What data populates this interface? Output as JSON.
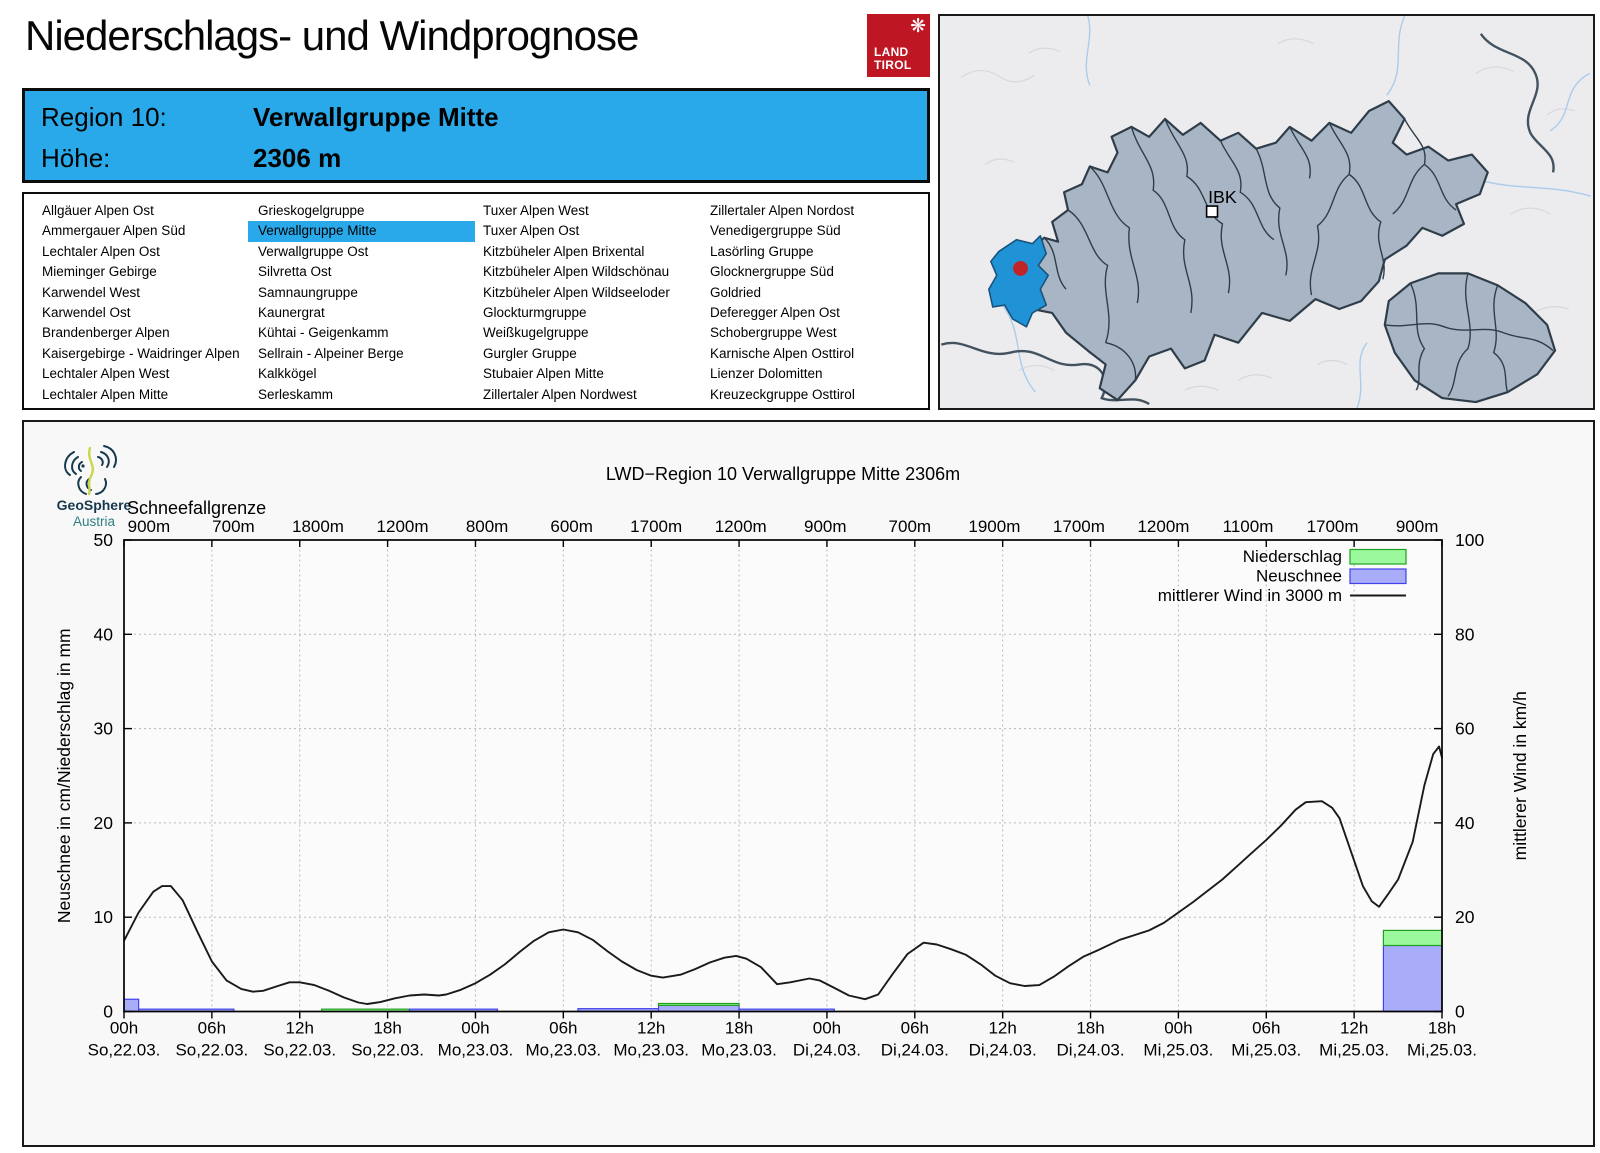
{
  "page": {
    "title": "Niederschlags- und Windprognose"
  },
  "logo_tirol": {
    "line1": "LAND",
    "line2": "TIROL"
  },
  "geosphere": {
    "line1": "GeoSphere",
    "line2": "Austria"
  },
  "region_header": {
    "region_label": "Region 10:",
    "region_value": "Verwallgruppe Mitte",
    "altitude_label": "Höhe:",
    "altitude_value": "2306 m"
  },
  "map": {
    "city_label": "IBK"
  },
  "region_list": {
    "selected": "Verwallgruppe Mitte",
    "columns": [
      [
        "Allgäuer Alpen Ost",
        "Ammergauer Alpen Süd",
        "Lechtaler Alpen Ost",
        "Mieminger Gebirge",
        "Karwendel West",
        "Karwendel Ost",
        "Brandenberger Alpen",
        "Kaisergebirge - Waidringer Alpen",
        "Lechtaler Alpen West",
        "Lechtaler Alpen Mitte"
      ],
      [
        "Grieskogelgruppe",
        "Verwallgruppe Mitte",
        "Verwallgruppe Ost",
        "Silvretta Ost",
        "Samnaungruppe",
        "Kaunergrat",
        "Kühtai - Geigenkamm",
        "Sellrain - Alpeiner Berge",
        "Kalkkögel",
        "Serleskamm"
      ],
      [
        "Tuxer Alpen West",
        "Tuxer Alpen Ost",
        "Kitzbüheler Alpen Brixental",
        "Kitzbüheler Alpen Wildschönau",
        "Kitzbüheler Alpen Wildseeloder",
        "Glockturmgruppe",
        "Weißkugelgruppe",
        "Gurgler Gruppe",
        "Stubaier Alpen Mitte",
        "Zillertaler Alpen Nordwest"
      ],
      [
        "Zillertaler Alpen Nordost",
        "Venedigergruppe Süd",
        "Lasörling Gruppe",
        "Glocknergruppe Süd",
        "Goldried",
        "Deferegger Alpen Ost",
        "Schobergruppe West",
        "Karnische Alpen Osttirol",
        "Lienzer Dolomitten",
        "Kreuzeckgruppe Osttirol"
      ]
    ]
  },
  "colors": {
    "selection_blue": "#29A9E9",
    "map_highlight_blue": "#2093D6",
    "marker_red": "#C12426",
    "logo_red": "#BE1622",
    "bar_niederschlag_fill": "#9CF89C",
    "bar_niederschlag_stroke": "#1FA01F",
    "bar_neuschnee_fill": "#A9ADF9",
    "bar_neuschnee_stroke": "#4242E8",
    "wind_line": "#1A1A1A"
  },
  "chart_data": {
    "type": "bar+line",
    "title": "LWD−Region 10 Verwallgruppe Mitte 2306m",
    "snowline_label": "Schneefallgrenze",
    "snowline_values": [
      "900m",
      "700m",
      "1800m",
      "1200m",
      "800m",
      "600m",
      "1700m",
      "1200m",
      "900m",
      "700m",
      "1900m",
      "1700m",
      "1200m",
      "1100m",
      "1700m",
      "900m"
    ],
    "ylabel_left": "Neuschnee in cm/Niederschlag in mm",
    "ylabel_right": "mittlerer Wind in km/h",
    "ylim_left": [
      0,
      50
    ],
    "ylim_right": [
      0,
      100
    ],
    "yticks_left": [
      0,
      10,
      20,
      30,
      40,
      50
    ],
    "yticks_right": [
      0,
      20,
      40,
      60,
      80,
      100
    ],
    "x_range_hours": [
      0,
      90
    ],
    "x_tick_step_hours": 6,
    "x_ticks": [
      {
        "time": "00h",
        "date": "So,22.03."
      },
      {
        "time": "06h",
        "date": "So,22.03."
      },
      {
        "time": "12h",
        "date": "So,22.03."
      },
      {
        "time": "18h",
        "date": "So,22.03."
      },
      {
        "time": "00h",
        "date": "Mo,23.03."
      },
      {
        "time": "06h",
        "date": "Mo,23.03."
      },
      {
        "time": "12h",
        "date": "Mo,23.03."
      },
      {
        "time": "18h",
        "date": "Mo,23.03."
      },
      {
        "time": "00h",
        "date": "Di,24.03."
      },
      {
        "time": "06h",
        "date": "Di,24.03."
      },
      {
        "time": "12h",
        "date": "Di,24.03."
      },
      {
        "time": "18h",
        "date": "Di,24.03."
      },
      {
        "time": "00h",
        "date": "Mi,25.03."
      },
      {
        "time": "06h",
        "date": "Mi,25.03."
      },
      {
        "time": "12h",
        "date": "Mi,25.03."
      },
      {
        "time": "18h",
        "date": "Mi,25.03."
      }
    ],
    "legend": [
      {
        "label": "Niederschlag",
        "type": "box",
        "fill": "#9CF89C",
        "stroke": "#1FA01F"
      },
      {
        "label": "Neuschnee",
        "type": "box",
        "fill": "#A9ADF9",
        "stroke": "#4242E8"
      },
      {
        "label": "mittlerer Wind in 3000 m",
        "type": "line",
        "stroke": "#1A1A1A"
      }
    ],
    "bars_note": "neuschnee_cm drawn from 0 (left axis), niederschlag_mm stacked on top of it",
    "bars": [
      {
        "from_h": 0,
        "to_h": 1,
        "neuschnee_cm": 1.3,
        "niederschlag_mm": 0
      },
      {
        "from_h": 1,
        "to_h": 7.5,
        "neuschnee_cm": 0.25,
        "niederschlag_mm": 0
      },
      {
        "from_h": 13.5,
        "to_h": 19.5,
        "neuschnee_cm": 0,
        "niederschlag_mm": 0.25
      },
      {
        "from_h": 19.5,
        "to_h": 25.5,
        "neuschnee_cm": 0.25,
        "niederschlag_mm": 0
      },
      {
        "from_h": 31,
        "to_h": 36.5,
        "neuschnee_cm": 0.3,
        "niederschlag_mm": 0
      },
      {
        "from_h": 36.5,
        "to_h": 42,
        "neuschnee_cm": 0.65,
        "niederschlag_mm": 0.2
      },
      {
        "from_h": 42,
        "to_h": 48.5,
        "neuschnee_cm": 0.25,
        "niederschlag_mm": 0
      },
      {
        "from_h": 86,
        "to_h": 90,
        "neuschnee_cm": 7.0,
        "niederschlag_mm": 1.6
      }
    ],
    "wind_series": {
      "name": "mittlerer Wind in 3000 m",
      "unit": "km/h",
      "points": [
        [
          0,
          15
        ],
        [
          1,
          21
        ],
        [
          2,
          25.4
        ],
        [
          2.6,
          26.6
        ],
        [
          3.2,
          26.6
        ],
        [
          4,
          23.6
        ],
        [
          5,
          17
        ],
        [
          6,
          10.6
        ],
        [
          7,
          6.6
        ],
        [
          8,
          4.8
        ],
        [
          8.8,
          4.2
        ],
        [
          9.5,
          4.4
        ],
        [
          10.5,
          5.4
        ],
        [
          11.3,
          6.2
        ],
        [
          12,
          6.2
        ],
        [
          13,
          5.6
        ],
        [
          14,
          4.4
        ],
        [
          15,
          3
        ],
        [
          16,
          1.9
        ],
        [
          16.6,
          1.6
        ],
        [
          17.5,
          2
        ],
        [
          18.5,
          2.8
        ],
        [
          19.5,
          3.4
        ],
        [
          20.5,
          3.6
        ],
        [
          21.5,
          3.4
        ],
        [
          22,
          3.6
        ],
        [
          23,
          4.6
        ],
        [
          24,
          6
        ],
        [
          25,
          7.8
        ],
        [
          26,
          10
        ],
        [
          27,
          12.6
        ],
        [
          28,
          15
        ],
        [
          29,
          16.8
        ],
        [
          30,
          17.4
        ],
        [
          31,
          16.8
        ],
        [
          32,
          15.2
        ],
        [
          33,
          12.8
        ],
        [
          34,
          10.6
        ],
        [
          35,
          8.8
        ],
        [
          36,
          7.6
        ],
        [
          36.8,
          7.2
        ],
        [
          38,
          7.8
        ],
        [
          39,
          9
        ],
        [
          40,
          10.4
        ],
        [
          41,
          11.4
        ],
        [
          41.8,
          11.8
        ],
        [
          42.5,
          11.2
        ],
        [
          43.5,
          9.4
        ],
        [
          44.6,
          5.8
        ],
        [
          45.5,
          6.2
        ],
        [
          46.8,
          7
        ],
        [
          47.5,
          6.6
        ],
        [
          48.5,
          5
        ],
        [
          49.5,
          3.4
        ],
        [
          50.6,
          2.6
        ],
        [
          51.5,
          3.6
        ],
        [
          52.5,
          8
        ],
        [
          53.5,
          12.2
        ],
        [
          54.6,
          14.6
        ],
        [
          55.5,
          14.2
        ],
        [
          56.5,
          13.2
        ],
        [
          57.5,
          12
        ],
        [
          58.5,
          10
        ],
        [
          59.5,
          7.6
        ],
        [
          60.5,
          6
        ],
        [
          61.5,
          5.4
        ],
        [
          62.5,
          5.6
        ],
        [
          63.5,
          7.4
        ],
        [
          64.5,
          9.6
        ],
        [
          65.5,
          11.6
        ],
        [
          66.5,
          13
        ],
        [
          68,
          15.2
        ],
        [
          69,
          16.2
        ],
        [
          70,
          17.2
        ],
        [
          71,
          18.8
        ],
        [
          72,
          21
        ],
        [
          73,
          23.2
        ],
        [
          74,
          25.6
        ],
        [
          75,
          28
        ],
        [
          76,
          30.8
        ],
        [
          77,
          33.6
        ],
        [
          78,
          36.4
        ],
        [
          79,
          39.4
        ],
        [
          80,
          42.8
        ],
        [
          80.7,
          44.4
        ],
        [
          81.8,
          44.6
        ],
        [
          82.5,
          43.2
        ],
        [
          83,
          41
        ],
        [
          84,
          32
        ],
        [
          84.6,
          26.6
        ],
        [
          85.2,
          23.4
        ],
        [
          85.7,
          22.2
        ],
        [
          86.3,
          24.8
        ],
        [
          87,
          28
        ],
        [
          88,
          36
        ],
        [
          88.8,
          48
        ],
        [
          89.4,
          54.6
        ],
        [
          89.8,
          56.2
        ],
        [
          90,
          53.8
        ]
      ]
    },
    "grid": true,
    "legend_position": "top-right-inside"
  }
}
